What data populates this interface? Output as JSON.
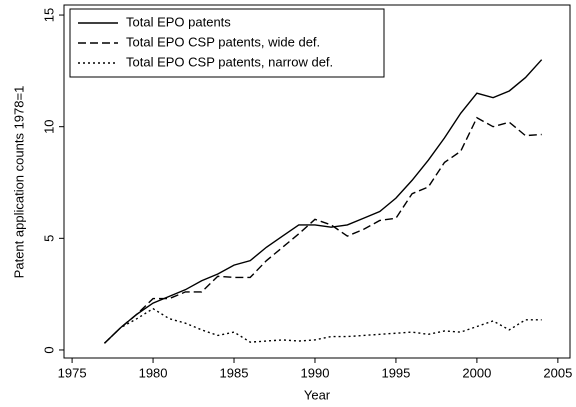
{
  "chart_data": {
    "type": "line",
    "x_label": "Year",
    "y_label": "Patent application counts 1978=1",
    "x": [
      1977,
      1978,
      1979,
      1980,
      1981,
      1982,
      1983,
      1984,
      1985,
      1986,
      1987,
      1988,
      1989,
      1990,
      1991,
      1992,
      1993,
      1994,
      1995,
      1996,
      1997,
      1998,
      1999,
      2000,
      2001,
      2002,
      2003,
      2004
    ],
    "series": [
      {
        "name": "Total EPO patents",
        "color": "#000000",
        "dash": "solid",
        "values": [
          0.3,
          1,
          1.6,
          2.1,
          2.4,
          2.7,
          3.1,
          3.4,
          3.8,
          4.0,
          4.6,
          5.1,
          5.6,
          5.6,
          5.5,
          5.6,
          5.9,
          6.2,
          6.8,
          7.6,
          8.5,
          9.5,
          10.6,
          11.5,
          11.3,
          11.6,
          12.2,
          13.0
        ]
      },
      {
        "name": "Total EPO CSP patents, wide def.",
        "color": "#000000",
        "dash": "dashed",
        "values": [
          0.3,
          1,
          1.6,
          2.3,
          2.3,
          2.6,
          2.6,
          3.3,
          3.25,
          3.25,
          4.0,
          4.6,
          5.2,
          5.85,
          5.6,
          5.1,
          5.4,
          5.8,
          5.9,
          7.0,
          7.3,
          8.4,
          8.9,
          10.4,
          10.0,
          10.2,
          9.6,
          9.65
        ]
      },
      {
        "name": "Total EPO CSP patents, narrow def.",
        "color": "#000000",
        "dash": "dotted",
        "values": [
          0.3,
          1,
          1.4,
          1.85,
          1.4,
          1.2,
          0.9,
          0.65,
          0.8,
          0.35,
          0.4,
          0.45,
          0.4,
          0.45,
          0.6,
          0.6,
          0.65,
          0.7,
          0.75,
          0.8,
          0.7,
          0.85,
          0.8,
          1.05,
          1.3,
          0.9,
          1.35,
          1.35
        ]
      }
    ],
    "xlim": [
      1974.5,
      2005.75
    ],
    "ylim": [
      -0.36,
      15.45
    ],
    "xticks": [
      1975,
      1980,
      1985,
      1990,
      1995,
      2000,
      2005
    ],
    "yticks": [
      0,
      5,
      10,
      15
    ],
    "legend": "upper left"
  }
}
